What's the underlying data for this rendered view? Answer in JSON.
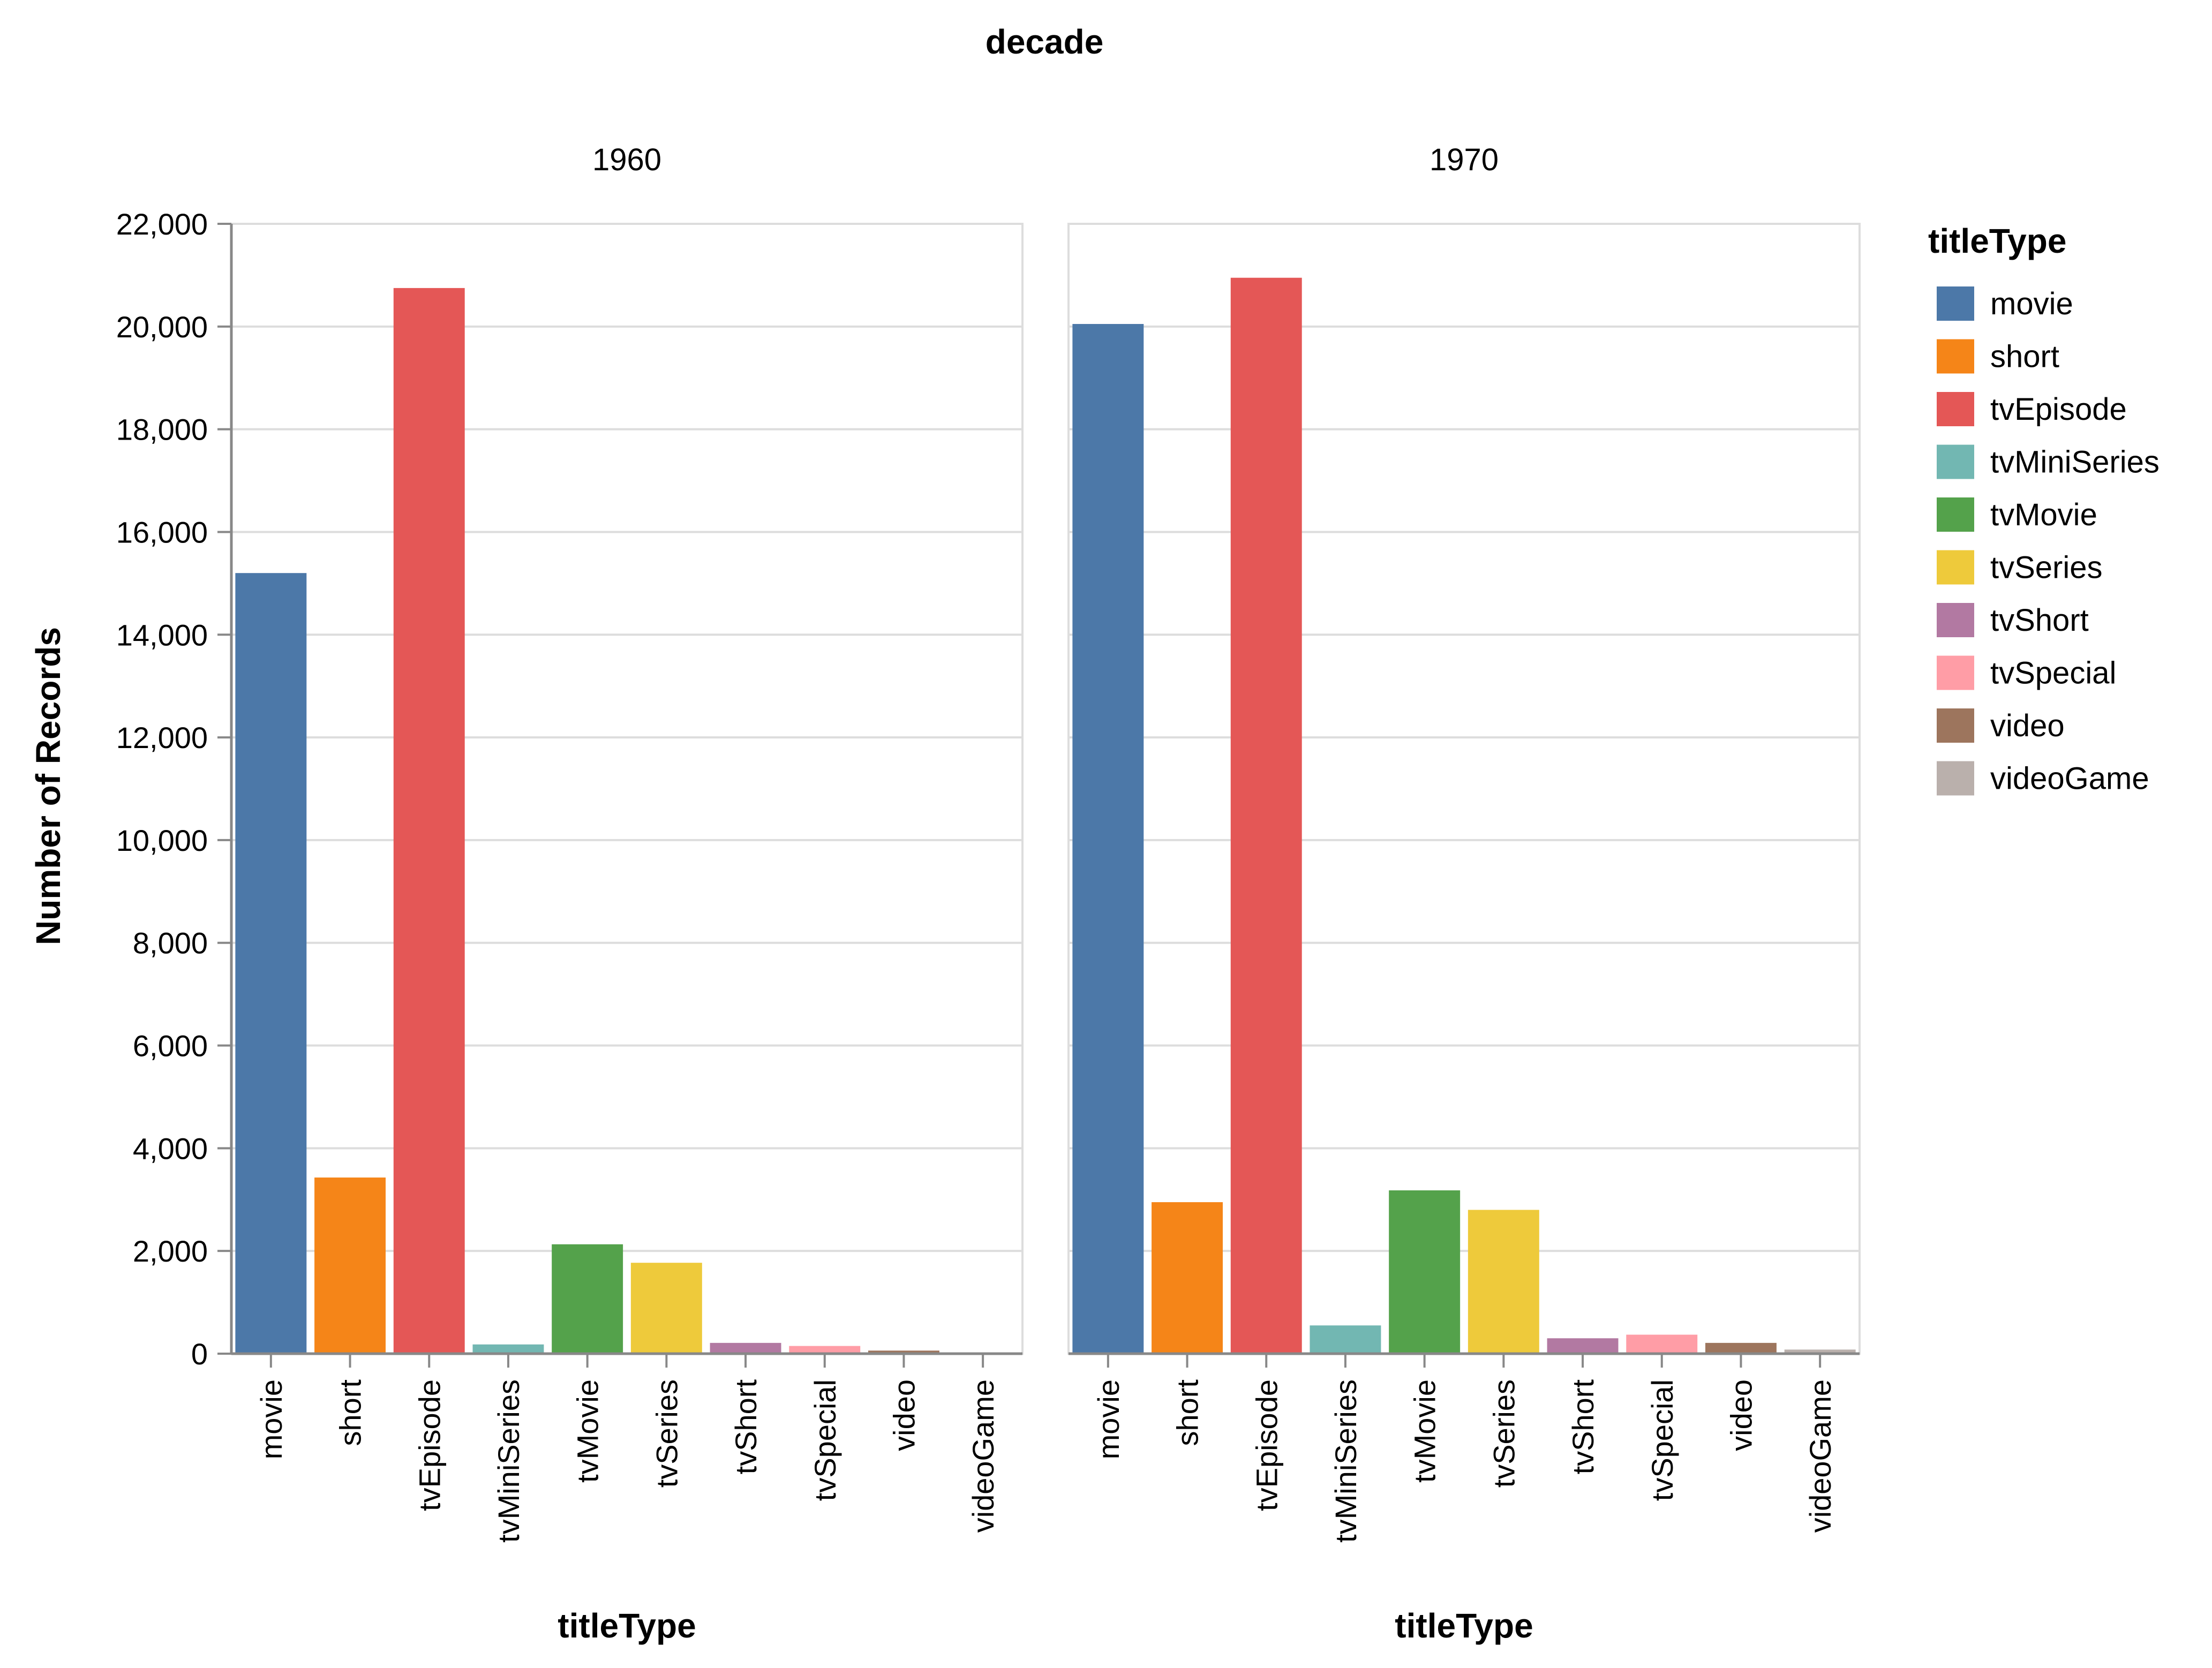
{
  "chart_data": {
    "type": "bar",
    "facet_title": "decade",
    "ylabel": "Number of Records",
    "xlabel": "titleType",
    "ylim": [
      0,
      22000
    ],
    "yticks": [
      0,
      2000,
      4000,
      6000,
      8000,
      10000,
      12000,
      14000,
      16000,
      18000,
      20000,
      22000
    ],
    "ytick_labels": [
      "0",
      "2,000",
      "4,000",
      "6,000",
      "8,000",
      "10,000",
      "12,000",
      "14,000",
      "16,000",
      "18,000",
      "20,000",
      "22,000"
    ],
    "grid": true,
    "legend_position": "right",
    "legend_title": "titleType",
    "categories": [
      "movie",
      "short",
      "tvEpisode",
      "tvMiniSeries",
      "tvMovie",
      "tvSeries",
      "tvShort",
      "tvSpecial",
      "video",
      "videoGame"
    ],
    "colors": [
      "#4c78a8",
      "#f58518",
      "#e45756",
      "#72b7b2",
      "#54a24b",
      "#eeca3b",
      "#b279a2",
      "#ff9da6",
      "#9d755d",
      "#bab0ac"
    ],
    "panels": [
      {
        "title": "1960",
        "values": [
          15200,
          3430,
          20750,
          180,
          2130,
          1770,
          210,
          150,
          60,
          20
        ]
      },
      {
        "title": "1970",
        "values": [
          20050,
          2950,
          20950,
          550,
          3180,
          2800,
          300,
          370,
          210,
          80
        ]
      }
    ]
  }
}
